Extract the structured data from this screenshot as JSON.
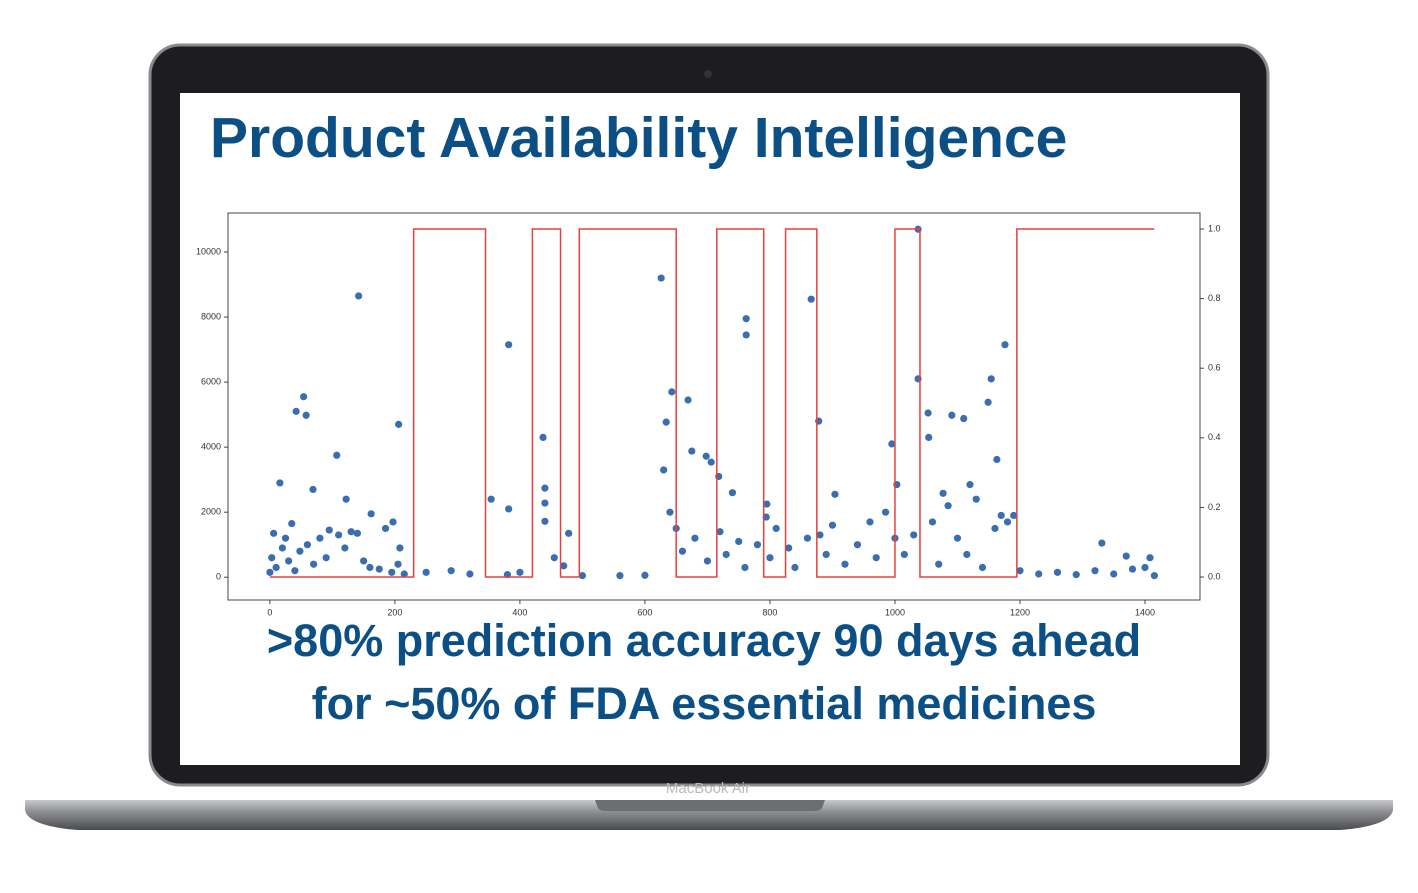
{
  "slide": {
    "title": "Product Availability Intelligence",
    "caption": [
      ">80% prediction accuracy 90 days ahead",
      "for ~50% of FDA essential medicines"
    ]
  },
  "device_label": "MacBook Air",
  "chart_data": {
    "type": "scatter",
    "xlim": [
      -67,
      1488
    ],
    "xticks": [
      0,
      200,
      400,
      600,
      800,
      1000,
      1200,
      1400
    ],
    "ylim": [
      -700,
      11200
    ],
    "yticks": [
      0,
      2000,
      4000,
      6000,
      8000,
      10000
    ],
    "y2lim": [
      -0.066,
      1.046
    ],
    "y2ticks": [
      {
        "value": 0,
        "label": "0.0"
      },
      0.2,
      0.4,
      0.6,
      0.8,
      {
        "value": 1,
        "label": "1.0"
      }
    ],
    "series": [
      {
        "type": "scatter",
        "color": "#3b6eae",
        "x": [
          6,
          16,
          42,
          54,
          58,
          69,
          107,
          122,
          142,
          162,
          206,
          197,
          208,
          354,
          382,
          382,
          437,
          440,
          440,
          440,
          478,
          626,
          634,
          630,
          643,
          669,
          675,
          698,
          706,
          718,
          762,
          762,
          794,
          795,
          866,
          878,
          904,
          1037,
          1037,
          1053,
          1054,
          1003,
          995,
          1091,
          1110,
          1077,
          1120,
          1149,
          1154,
          1163,
          1176,
          1190,
          1170,
          1331,
          1370,
          1408,
          0,
          3,
          10,
          20,
          25,
          30,
          35,
          40,
          48,
          60,
          70,
          80,
          90,
          95,
          110,
          120,
          130,
          140,
          150,
          160,
          175,
          185,
          195,
          205,
          215,
          250,
          290,
          320,
          380,
          400,
          455,
          470,
          500,
          560,
          600,
          640,
          650,
          660,
          680,
          700,
          720,
          730,
          740,
          750,
          760,
          780,
          800,
          810,
          830,
          840,
          860,
          880,
          890,
          900,
          920,
          940,
          960,
          970,
          985,
          1000,
          1015,
          1030,
          1060,
          1070,
          1085,
          1100,
          1115,
          1130,
          1140,
          1160,
          1180,
          1200,
          1230,
          1260,
          1290,
          1320,
          1350,
          1380,
          1400,
          1415
        ],
        "values": [
          1350,
          2900,
          5100,
          5550,
          4980,
          2700,
          3750,
          2400,
          8650,
          1950,
          4700,
          1700,
          900,
          2400,
          7150,
          2100,
          4300,
          2740,
          2280,
          1720,
          1350,
          9200,
          4770,
          3300,
          5700,
          5450,
          3880,
          3720,
          3540,
          3100,
          7950,
          7450,
          1850,
          2250,
          8550,
          4800,
          2550,
          10700,
          6100,
          5050,
          4300,
          2850,
          4100,
          4980,
          4880,
          2580,
          2850,
          5380,
          6100,
          3620,
          7150,
          1900,
          1900,
          1050,
          650,
          600,
          150,
          600,
          300,
          900,
          1200,
          500,
          1650,
          200,
          800,
          1000,
          400,
          1200,
          600,
          1450,
          1300,
          900,
          1400,
          1350,
          500,
          300,
          250,
          1500,
          150,
          400,
          100,
          150,
          200,
          100,
          80,
          150,
          600,
          350,
          50,
          50,
          60,
          2000,
          1500,
          800,
          1200,
          500,
          1400,
          700,
          2600,
          1100,
          300,
          1000,
          600,
          1500,
          900,
          300,
          1200,
          1300,
          700,
          1600,
          400,
          1000,
          1700,
          600,
          2000,
          1200,
          700,
          1300,
          1700,
          400,
          2200,
          1200,
          700,
          2400,
          300,
          1500,
          1700,
          200,
          100,
          150,
          80,
          200,
          100,
          250,
          300,
          50
        ]
      },
      {
        "type": "line",
        "axis": "y2",
        "color": "#e8403c",
        "x": [
          0,
          230,
          230,
          345,
          345,
          420,
          420,
          465,
          465,
          495,
          495,
          650,
          650,
          715,
          715,
          790,
          790,
          825,
          825,
          875,
          875,
          1000,
          1000,
          1040,
          1040,
          1195,
          1195,
          1415
        ],
        "values": [
          0,
          0,
          1,
          1,
          0,
          0,
          1,
          1,
          0,
          0,
          1,
          1,
          0,
          0,
          1,
          1,
          0,
          0,
          1,
          1,
          0,
          0,
          1,
          1,
          0,
          0,
          1,
          1
        ]
      }
    ]
  }
}
